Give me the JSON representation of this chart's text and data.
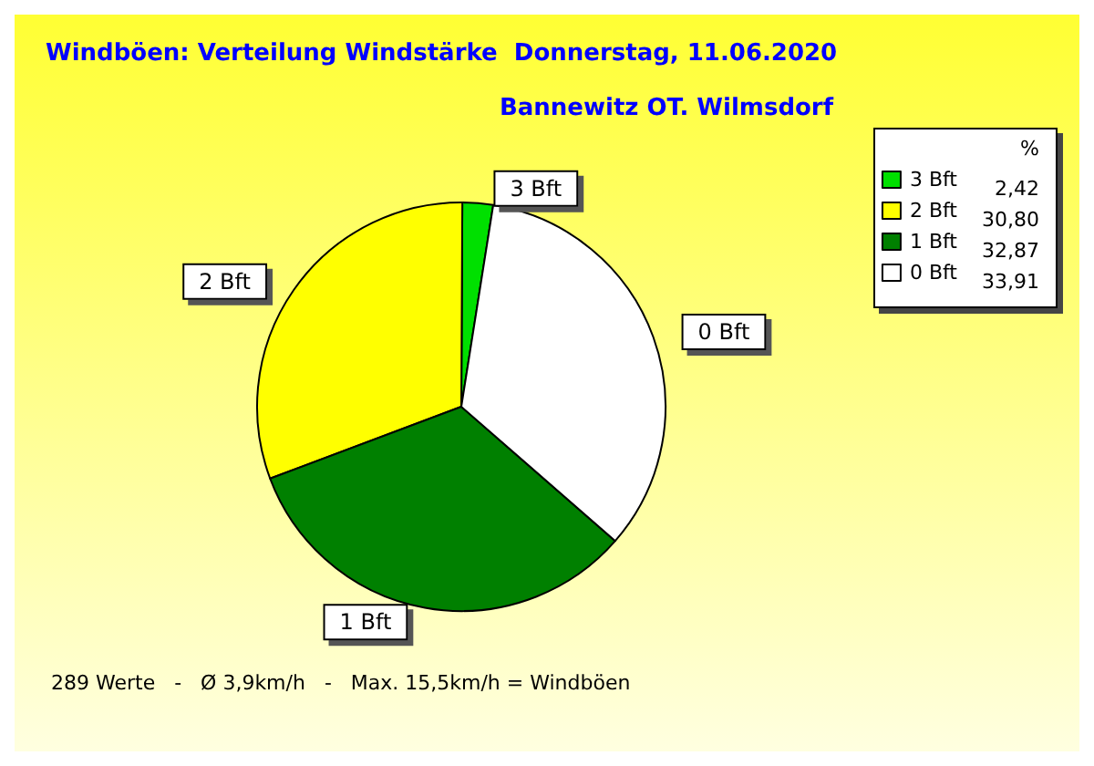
{
  "chart_data": {
    "type": "pie",
    "title": "Windböen: Verteilung Windstärke  Donnerstag, 11.06.2020",
    "subtitle": "Bannewitz OT. Wilmsdorf",
    "categories": [
      "3 Bft",
      "2 Bft",
      "1 Bft",
      "0 Bft"
    ],
    "values": [
      2.42,
      30.8,
      32.87,
      33.91
    ],
    "value_labels": [
      "2,42",
      "30,80",
      "32,87",
      "33,91"
    ],
    "colors": [
      "#00e000",
      "#ffff00",
      "#008000",
      "#ffffff"
    ],
    "legend_title": "%",
    "legend": "top right",
    "annotations": [
      "289 Werte   -   Ø 3,9km/h   -   Max. 15,5km/h = Windböen"
    ]
  }
}
